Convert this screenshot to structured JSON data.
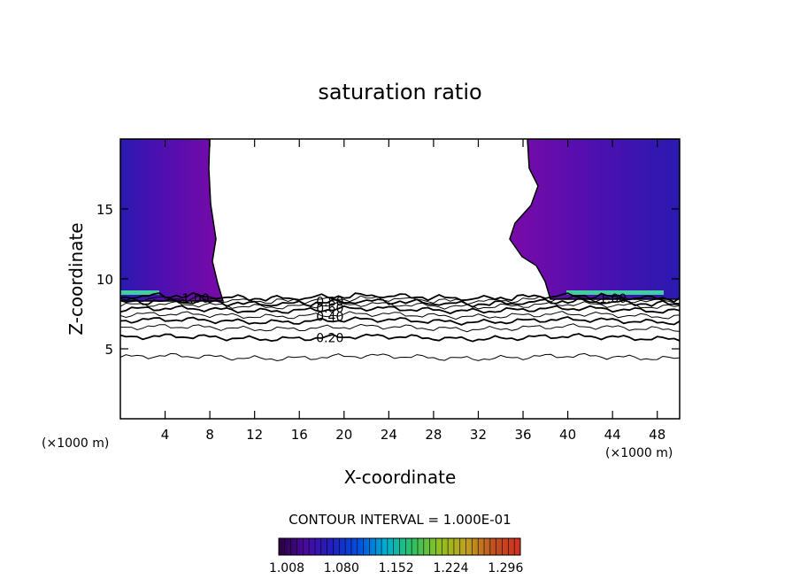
{
  "chart_data": {
    "type": "heatmap",
    "title": "saturation ratio",
    "xlabel": "X-coordinate",
    "ylabel": "Z-coordinate",
    "x_unit_left": "(×1000 m)",
    "x_unit_right": "(×1000 m)",
    "xlim": [
      0,
      50
    ],
    "ylim": [
      0,
      20
    ],
    "x_ticks": [
      "4",
      "8",
      "12",
      "16",
      "20",
      "24",
      "28",
      "32",
      "36",
      "40",
      "44",
      "48"
    ],
    "y_ticks": [
      "5",
      "10",
      "15"
    ],
    "contour_interval_text": "CONTOUR INTERVAL = 1.000E-01",
    "colorbar": {
      "labels": [
        "1.008",
        "1.080",
        "1.152",
        "1.224",
        "1.296"
      ],
      "colors": [
        "#2a0040",
        "#4a0aa0",
        "#2020c0",
        "#0050e0",
        "#00b0d0",
        "#30c060",
        "#90c020",
        "#c0a020",
        "#c05020",
        "#d03020"
      ]
    },
    "contour_labels": [
      {
        "label": "1.00",
        "x": 5.5,
        "z": 8.6
      },
      {
        "label": "1.00",
        "x": 42.8,
        "z": 8.6
      },
      {
        "label": "0.80",
        "x": 17.5,
        "z": 8.4
      },
      {
        "label": "0.60",
        "x": 17.5,
        "z": 7.9
      },
      {
        "label": "0.40",
        "x": 17.5,
        "z": 7.3
      },
      {
        "label": "0.20",
        "x": 17.5,
        "z": 5.8
      }
    ],
    "contour_levels": [
      {
        "value": 0.1,
        "z": 4.4
      },
      {
        "value": 0.2,
        "z": 5.8
      },
      {
        "value": 0.3,
        "z": 6.5
      },
      {
        "value": 0.4,
        "z": 7.0
      },
      {
        "value": 0.5,
        "z": 7.4
      },
      {
        "value": 0.6,
        "z": 7.8
      },
      {
        "value": 0.7,
        "z": 8.1
      },
      {
        "value": 0.8,
        "z": 8.3
      },
      {
        "value": 0.9,
        "z": 8.5
      },
      {
        "value": 1.0,
        "z": 8.7
      }
    ],
    "supersaturated_regions": [
      {
        "side": "left",
        "x_range": [
          0,
          9
        ],
        "z_range": [
          8.6,
          20
        ]
      },
      {
        "side": "right",
        "x_range": [
          36,
          50
        ],
        "z_range": [
          8.6,
          20
        ]
      }
    ]
  }
}
